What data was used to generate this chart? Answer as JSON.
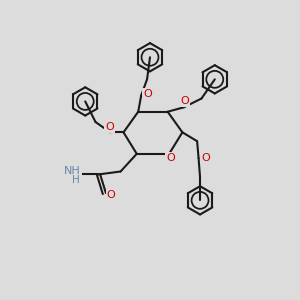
{
  "background_color": "#dcdcdc",
  "line_color": "#1a1a1a",
  "oxygen_color": "#cc0000",
  "nitrogen_color": "#6688aa",
  "bond_lw": 1.5,
  "figsize": [
    3.0,
    3.0
  ],
  "dpi": 100,
  "xlim": [
    0,
    10
  ],
  "ylim": [
    0,
    10
  ]
}
